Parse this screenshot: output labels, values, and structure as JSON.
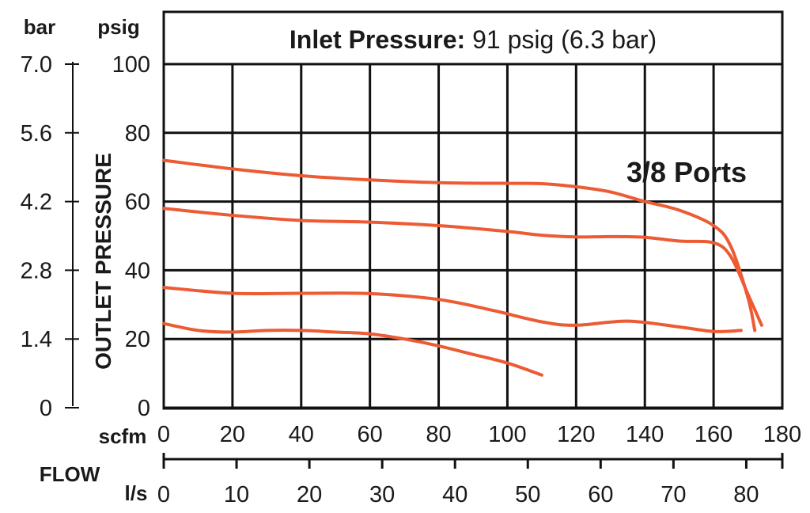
{
  "chart_data": {
    "type": "line",
    "title_bold": "Inlet Pressure:",
    "title_rest": " 91 psig (6.3 bar)",
    "annotation": "3/8 Ports",
    "ylabel": "OUTLET PRESSURE",
    "xlabel": "FLOW",
    "y_left_unit": "bar",
    "y_right_unit": "psig",
    "x_top_unit": "scfm",
    "x_bottom_unit": "l/s",
    "ylim": [
      0,
      100
    ],
    "xlim": [
      0,
      180
    ],
    "y_psig_ticks": [
      "0",
      "20",
      "40",
      "60",
      "80",
      "100"
    ],
    "y_bar_ticks": [
      "0",
      "1.4",
      "2.8",
      "4.2",
      "5.6",
      "7.0"
    ],
    "x_scfm_ticks": [
      "0",
      "20",
      "40",
      "60",
      "80",
      "100",
      "120",
      "140",
      "160",
      "180"
    ],
    "x_ls_ticks": [
      "0",
      "10",
      "20",
      "30",
      "40",
      "50",
      "60",
      "70",
      "80"
    ],
    "curve_color": "#ec5b33",
    "series": [
      {
        "x": [
          0,
          20,
          40,
          60,
          80,
          100,
          110,
          120,
          130,
          140,
          150,
          160,
          165,
          170,
          172
        ],
        "y": [
          72,
          69.5,
          67.5,
          66.3,
          65.5,
          65.3,
          65.2,
          64.3,
          62.8,
          60,
          57.5,
          53,
          47,
          32,
          22.5
        ]
      },
      {
        "x": [
          0,
          20,
          40,
          60,
          80,
          100,
          110,
          120,
          130,
          140,
          150,
          160,
          165,
          170,
          174
        ],
        "y": [
          58,
          56,
          54.5,
          54,
          53,
          51.3,
          50.2,
          49.7,
          49.8,
          49.6,
          48.5,
          48,
          44,
          33,
          24
        ]
      },
      {
        "x": [
          0,
          20,
          40,
          60,
          80,
          95,
          110,
          120,
          135,
          150,
          160,
          168
        ],
        "y": [
          35,
          33.3,
          33.3,
          33.2,
          31.5,
          28.5,
          25,
          24,
          25.2,
          23.5,
          22.2,
          22.5
        ]
      },
      {
        "x": [
          0,
          10,
          20,
          30,
          40,
          50,
          60,
          70,
          80,
          90,
          100,
          110
        ],
        "y": [
          24.5,
          22.5,
          22,
          22.5,
          22.5,
          22,
          21.5,
          20,
          18,
          15.5,
          13,
          9.5
        ]
      }
    ]
  }
}
